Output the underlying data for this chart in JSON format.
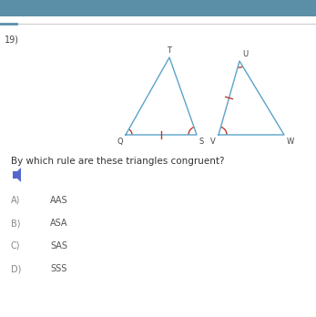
{
  "bg_color": "#ffffff",
  "header_color": "#5b8fa8",
  "question_number": "19)",
  "question_text": "By which rule are these triangles congruent?",
  "options": [
    {
      "label": "A)",
      "text": "AAS"
    },
    {
      "label": "B)",
      "text": "ASA"
    },
    {
      "label": "C)",
      "text": "SAS"
    },
    {
      "label": "D)",
      "text": "SSS"
    }
  ],
  "triangle_color": "#5ba3c9",
  "angle_mark_color": "#c0392b",
  "tick_color": "#c0392b"
}
